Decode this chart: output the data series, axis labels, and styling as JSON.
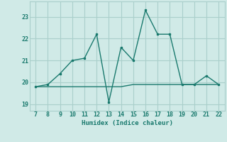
{
  "x": [
    7,
    8,
    9,
    10,
    11,
    12,
    13,
    14,
    15,
    16,
    17,
    18,
    19,
    20,
    21,
    22
  ],
  "y_line": [
    19.8,
    19.9,
    20.4,
    21.0,
    21.1,
    22.2,
    19.1,
    21.6,
    21.0,
    23.3,
    22.2,
    22.2,
    19.9,
    19.9,
    20.3,
    19.9
  ],
  "y_flat": [
    19.8,
    19.8,
    19.8,
    19.8,
    19.8,
    19.8,
    19.8,
    19.8,
    19.9,
    19.9,
    19.9,
    19.9,
    19.9,
    19.9,
    19.9,
    19.9
  ],
  "line_color": "#1a7a6e",
  "flat_color": "#1a7a6e",
  "bg_color": "#d0eae7",
  "grid_color": "#aacfcb",
  "text_color": "#1a7a6e",
  "xlabel": "Humidex (Indice chaleur)",
  "xlim": [
    6.5,
    22.5
  ],
  "ylim": [
    18.7,
    23.7
  ],
  "yticks": [
    19,
    20,
    21,
    22,
    23
  ],
  "xticks": [
    7,
    8,
    9,
    10,
    11,
    12,
    13,
    14,
    15,
    16,
    17,
    18,
    19,
    20,
    21,
    22
  ]
}
